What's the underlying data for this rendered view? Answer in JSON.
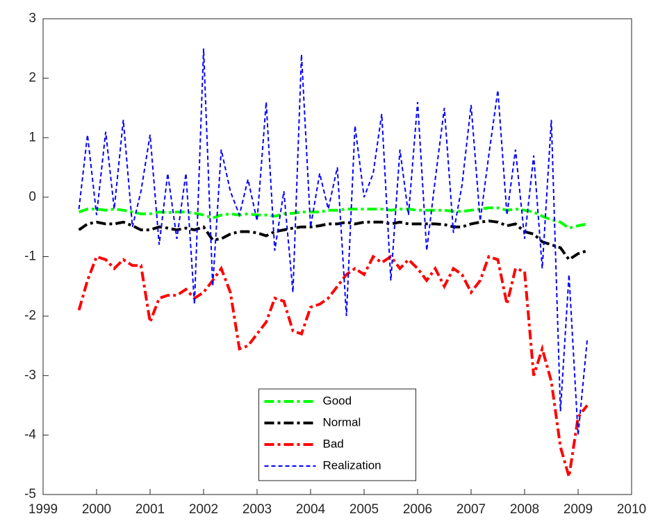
{
  "chart_data": {
    "type": "line",
    "x": [
      1999.67,
      1999.83,
      2000,
      2000.17,
      2000.33,
      2000.5,
      2000.67,
      2000.83,
      2001,
      2001.17,
      2001.33,
      2001.5,
      2001.67,
      2001.83,
      2002,
      2002.17,
      2002.33,
      2002.5,
      2002.67,
      2002.83,
      2003,
      2003.17,
      2003.33,
      2003.5,
      2003.67,
      2003.83,
      2004,
      2004.17,
      2004.33,
      2004.5,
      2004.67,
      2004.83,
      2005,
      2005.17,
      2005.33,
      2005.5,
      2005.67,
      2005.83,
      2006,
      2006.17,
      2006.33,
      2006.5,
      2006.67,
      2006.83,
      2007,
      2007.17,
      2007.33,
      2007.5,
      2007.67,
      2007.83,
      2008,
      2008.17,
      2008.33,
      2008.5,
      2008.67,
      2008.83,
      2009,
      2009.17
    ],
    "series": [
      {
        "name": "Good",
        "color": "#00ff00",
        "style": "dashdot",
        "values": [
          -0.25,
          -0.2,
          -0.2,
          -0.22,
          -0.2,
          -0.22,
          -0.25,
          -0.28,
          -0.28,
          -0.25,
          -0.26,
          -0.25,
          -0.25,
          -0.27,
          -0.3,
          -0.35,
          -0.3,
          -0.28,
          -0.3,
          -0.28,
          -0.3,
          -0.3,
          -0.32,
          -0.28,
          -0.27,
          -0.25,
          -0.25,
          -0.25,
          -0.22,
          -0.22,
          -0.2,
          -0.2,
          -0.2,
          -0.2,
          -0.2,
          -0.22,
          -0.2,
          -0.2,
          -0.22,
          -0.22,
          -0.22,
          -0.22,
          -0.24,
          -0.24,
          -0.22,
          -0.2,
          -0.18,
          -0.18,
          -0.22,
          -0.2,
          -0.22,
          -0.25,
          -0.32,
          -0.38,
          -0.42,
          -0.52,
          -0.48,
          -0.45
        ]
      },
      {
        "name": "Normal",
        "color": "#000000",
        "style": "dashdot",
        "values": [
          -0.55,
          -0.45,
          -0.42,
          -0.45,
          -0.45,
          -0.42,
          -0.48,
          -0.55,
          -0.55,
          -0.5,
          -0.52,
          -0.55,
          -0.52,
          -0.55,
          -0.5,
          -0.72,
          -0.7,
          -0.62,
          -0.58,
          -0.58,
          -0.6,
          -0.65,
          -0.58,
          -0.55,
          -0.52,
          -0.5,
          -0.5,
          -0.48,
          -0.45,
          -0.45,
          -0.42,
          -0.45,
          -0.42,
          -0.42,
          -0.42,
          -0.45,
          -0.42,
          -0.45,
          -0.45,
          -0.45,
          -0.45,
          -0.46,
          -0.5,
          -0.5,
          -0.45,
          -0.42,
          -0.4,
          -0.42,
          -0.48,
          -0.45,
          -0.58,
          -0.62,
          -0.75,
          -0.8,
          -0.85,
          -1.05,
          -0.95,
          -0.9
        ]
      },
      {
        "name": "Bad",
        "color": "#ff0000",
        "style": "dashdot",
        "values": [
          -1.9,
          -1.4,
          -1.0,
          -1.05,
          -1.2,
          -1.05,
          -1.15,
          -1.15,
          -2.1,
          -1.7,
          -1.65,
          -1.65,
          -1.55,
          -1.7,
          -1.6,
          -1.4,
          -1.2,
          -1.6,
          -2.55,
          -2.5,
          -2.3,
          -2.1,
          -1.7,
          -1.75,
          -2.25,
          -2.3,
          -1.85,
          -1.8,
          -1.7,
          -1.5,
          -1.3,
          -1.2,
          -1.3,
          -1.0,
          -1.1,
          -1.0,
          -1.2,
          -1.05,
          -1.2,
          -1.4,
          -1.2,
          -1.5,
          -1.2,
          -1.3,
          -1.6,
          -1.4,
          -1.0,
          -1.05,
          -1.8,
          -1.2,
          -1.25,
          -3.0,
          -2.55,
          -3.1,
          -4.2,
          -4.7,
          -3.7,
          -3.5
        ]
      },
      {
        "name": "Realization",
        "color": "#0000ff",
        "style": "dashed",
        "values": [
          -0.2,
          1.05,
          -0.3,
          1.1,
          -0.2,
          1.3,
          -0.5,
          0.1,
          1.05,
          -0.8,
          0.4,
          -0.7,
          0.4,
          -1.8,
          2.5,
          -1.5,
          0.8,
          0.1,
          -0.3,
          0.3,
          -0.4,
          1.6,
          -0.9,
          0.1,
          -1.6,
          2.4,
          -0.5,
          0.4,
          -0.2,
          0.5,
          -2.0,
          1.2,
          0.0,
          0.4,
          1.4,
          -1.4,
          0.8,
          -0.3,
          1.6,
          -0.9,
          0.3,
          1.5,
          -0.6,
          0.2,
          1.55,
          -0.4,
          0.7,
          1.8,
          -0.3,
          0.8,
          -0.7,
          0.7,
          -1.2,
          1.3,
          -3.6,
          -1.3,
          -4.0,
          -2.4
        ]
      }
    ],
    "xlim": [
      1999,
      2010
    ],
    "xticks": [
      1999,
      2000,
      2001,
      2002,
      2003,
      2004,
      2005,
      2006,
      2007,
      2008,
      2009,
      2010
    ],
    "ylim": [
      -5,
      3
    ],
    "yticks": [
      -5,
      -4,
      -3,
      -2,
      -1,
      0,
      1,
      2,
      3
    ],
    "grid": false,
    "legend": "south"
  }
}
